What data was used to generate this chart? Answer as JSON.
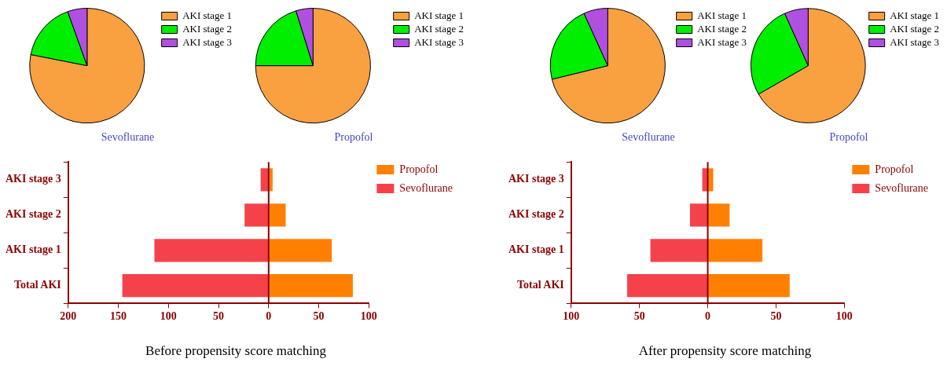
{
  "chart_data": [
    {
      "type": "pie",
      "title": "Sevoflurane",
      "categories": [
        "AKI stage 1",
        "AKI stage 2",
        "AKI stage 3"
      ],
      "values": [
        78.1,
        16.4,
        5.5
      ],
      "colors": [
        "#f9a040",
        "#00ee00",
        "#b050e0"
      ],
      "legend": "top right"
    },
    {
      "type": "pie",
      "title": "Propofol",
      "categories": [
        "AKI stage 1",
        "AKI stage 2",
        "AKI stage 3"
      ],
      "values": [
        75,
        20.2,
        4.8
      ],
      "colors": [
        "#f9a040",
        "#00ee00",
        "#b050e0"
      ],
      "legend": "top right"
    },
    {
      "type": "bar",
      "orientation": "horizontal",
      "stacked": true,
      "categories": [
        "AKI stage 3",
        "AKI stage 2",
        "AKI stage 1",
        "Total AKI"
      ],
      "series": [
        {
          "name": "Propofol",
          "color": "#ff8000",
          "values": [
            4,
            17,
            63,
            84
          ]
        },
        {
          "name": "Sevoflurane",
          "color": "#f5424a",
          "values": [
            -8,
            -24,
            -114,
            -146
          ]
        }
      ],
      "xlim": [
        -200,
        100
      ],
      "xticks": [
        {
          "value": -200,
          "label": "200"
        },
        {
          "value": -150,
          "label": "150"
        },
        {
          "value": -100,
          "label": "100"
        },
        {
          "value": -50,
          "label": "50"
        },
        0,
        50,
        100
      ],
      "ref_lines": [
        {
          "axis": "x",
          "value": 0,
          "color": "#8b0000"
        }
      ],
      "legend": "top right",
      "annotations": [
        "Before propensity score matching"
      ]
    },
    {
      "type": "pie",
      "title": "Sevoflurane",
      "categories": [
        "AKI stage 1",
        "AKI stage 2",
        "AKI stage 3"
      ],
      "values": [
        71.2,
        22,
        6.8
      ],
      "colors": [
        "#f9a040",
        "#00ee00",
        "#b050e0"
      ],
      "legend": "top right"
    },
    {
      "type": "pie",
      "title": "Propofol",
      "categories": [
        "AKI stage 1",
        "AKI stage 2",
        "AKI stage 3"
      ],
      "values": [
        66.7,
        26.6,
        6.7
      ],
      "colors": [
        "#f9a040",
        "#00ee00",
        "#b050e0"
      ],
      "legend": "top right"
    },
    {
      "type": "bar",
      "orientation": "horizontal",
      "stacked": true,
      "categories": [
        "AKI stage 3",
        "AKI stage 2",
        "AKI stage 1",
        "Total AKI"
      ],
      "series": [
        {
          "name": "Propofol",
          "color": "#ff8000",
          "values": [
            4,
            16,
            40,
            60
          ]
        },
        {
          "name": "Sevoflurane",
          "color": "#f5424a",
          "values": [
            -4,
            -13,
            -42,
            -59
          ]
        }
      ],
      "xlim": [
        -100,
        100
      ],
      "xticks": [
        {
          "value": -100,
          "label": "100"
        },
        {
          "value": -50,
          "label": "50"
        },
        0,
        50,
        100
      ],
      "ref_lines": [
        {
          "axis": "x",
          "value": 0,
          "color": "#8b0000"
        }
      ],
      "legend": "top right",
      "annotations": [
        "After propensity score matching"
      ]
    }
  ]
}
